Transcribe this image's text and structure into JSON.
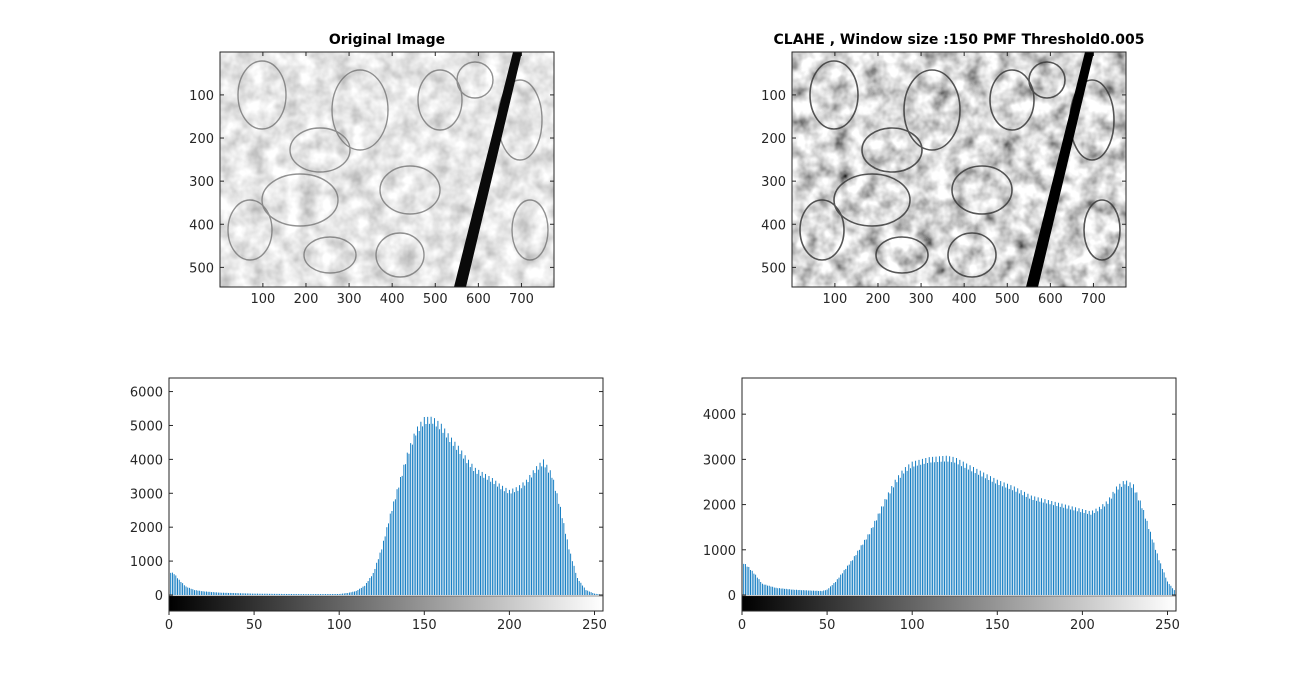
{
  "figure": {
    "background": "#ffffff",
    "axis_color": "#262626"
  },
  "chart_data": [
    {
      "type": "image",
      "title": "Original Image",
      "image_description": "grayscale electron-microscopy image, original contrast",
      "xticks": [
        100,
        200,
        300,
        400,
        500,
        600,
        700
      ],
      "yticks": [
        100,
        200,
        300,
        400,
        500
      ],
      "xlim": [
        0.5,
        775.5
      ],
      "ylim": [
        0.5,
        545.5
      ],
      "y_reversed": true
    },
    {
      "type": "image",
      "title": "CLAHE , Window size :150 PMF Threshold0.005",
      "image_description": "grayscale electron-microscopy image after CLAHE, higher contrast",
      "xticks": [
        100,
        200,
        300,
        400,
        500,
        600,
        700
      ],
      "yticks": [
        100,
        200,
        300,
        400,
        500
      ],
      "xlim": [
        0.5,
        775.5
      ],
      "ylim": [
        0.5,
        545.5
      ],
      "y_reversed": true
    },
    {
      "type": "bar",
      "title": "",
      "bar_color": "#0072bd",
      "xlim": [
        0,
        255
      ],
      "ylim": [
        0,
        6400
      ],
      "xticks": [
        0,
        50,
        100,
        150,
        200,
        250
      ],
      "yticks": [
        0,
        1000,
        2000,
        3000,
        4000,
        5000,
        6000
      ],
      "grayscale_colorbar": true,
      "keypoints": [
        [
          0,
          700
        ],
        [
          3,
          640
        ],
        [
          6,
          450
        ],
        [
          10,
          250
        ],
        [
          15,
          150
        ],
        [
          20,
          110
        ],
        [
          30,
          70
        ],
        [
          50,
          40
        ],
        [
          80,
          25
        ],
        [
          100,
          30
        ],
        [
          105,
          60
        ],
        [
          110,
          120
        ],
        [
          115,
          280
        ],
        [
          120,
          650
        ],
        [
          125,
          1400
        ],
        [
          130,
          2400
        ],
        [
          135,
          3300
        ],
        [
          140,
          4200
        ],
        [
          145,
          4900
        ],
        [
          150,
          5250
        ],
        [
          155,
          5260
        ],
        [
          160,
          5050
        ],
        [
          165,
          4700
        ],
        [
          170,
          4400
        ],
        [
          175,
          4050
        ],
        [
          180,
          3750
        ],
        [
          185,
          3600
        ],
        [
          190,
          3450
        ],
        [
          195,
          3250
        ],
        [
          200,
          3100
        ],
        [
          205,
          3200
        ],
        [
          210,
          3400
        ],
        [
          215,
          3750
        ],
        [
          220,
          4000
        ],
        [
          225,
          3600
        ],
        [
          230,
          2600
        ],
        [
          235,
          1400
        ],
        [
          240,
          500
        ],
        [
          245,
          150
        ],
        [
          250,
          40
        ],
        [
          255,
          10
        ]
      ]
    },
    {
      "type": "bar",
      "title": "",
      "bar_color": "#0072bd",
      "xlim": [
        0,
        255
      ],
      "ylim": [
        0,
        4800
      ],
      "xticks": [
        0,
        50,
        100,
        150,
        200,
        250
      ],
      "yticks": [
        0,
        1000,
        2000,
        3000,
        4000
      ],
      "grayscale_colorbar": true,
      "keypoints": [
        [
          0,
          750
        ],
        [
          4,
          620
        ],
        [
          8,
          450
        ],
        [
          12,
          250
        ],
        [
          20,
          160
        ],
        [
          30,
          120
        ],
        [
          40,
          100
        ],
        [
          47,
          90
        ],
        [
          50,
          120
        ],
        [
          55,
          300
        ],
        [
          60,
          550
        ],
        [
          65,
          800
        ],
        [
          70,
          1100
        ],
        [
          75,
          1400
        ],
        [
          80,
          1800
        ],
        [
          85,
          2200
        ],
        [
          90,
          2550
        ],
        [
          95,
          2800
        ],
        [
          100,
          2950
        ],
        [
          110,
          3050
        ],
        [
          120,
          3080
        ],
        [
          125,
          3050
        ],
        [
          130,
          2950
        ],
        [
          140,
          2750
        ],
        [
          150,
          2550
        ],
        [
          160,
          2400
        ],
        [
          170,
          2200
        ],
        [
          180,
          2100
        ],
        [
          190,
          2000
        ],
        [
          200,
          1900
        ],
        [
          205,
          1850
        ],
        [
          210,
          1950
        ],
        [
          215,
          2100
        ],
        [
          220,
          2400
        ],
        [
          225,
          2550
        ],
        [
          230,
          2450
        ],
        [
          235,
          2000
        ],
        [
          240,
          1400
        ],
        [
          245,
          800
        ],
        [
          250,
          300
        ],
        [
          255,
          60
        ]
      ]
    }
  ]
}
